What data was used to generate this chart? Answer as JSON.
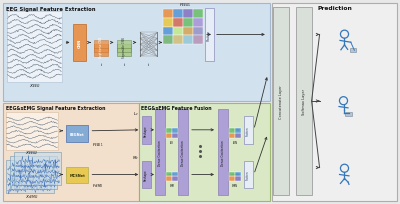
{
  "fig_width": 4.0,
  "fig_height": 2.05,
  "dpi": 100,
  "bg_outer": "#e8e8e8",
  "top_section_color": "#cde0f0",
  "bottom_left_color": "#f5dfc8",
  "bottom_right_color": "#d8e8c0",
  "prediction_bg": "#e8e8e8",
  "prediction_inner": "#f0f0f0",
  "orange_block": "#E8924A",
  "purple_block": "#8878C3",
  "blue_block": "#7BA7D4",
  "yellow_block": "#E8C84A",
  "light_purple": "#A898D8",
  "flatten_color": "#e8eef8",
  "concat_layer_color": "#d8e0d8",
  "softmax_color": "#d8e0d8",
  "arrow_color": "#444444",
  "text_color": "#111111",
  "grid_colors_top": [
    "#E8924A",
    "#5B9BD5",
    "#8878C3",
    "#70C070",
    "#E8C84A",
    "#D47060",
    "#70C070",
    "#A898D8",
    "#5B9BD5",
    "#C0E890",
    "#D4A860",
    "#9898C8",
    "#78B878",
    "#D0C080",
    "#98C8D8",
    "#B898B8"
  ],
  "cube_colors_ev": [
    "#E8924A",
    "#8878C3",
    "#70C070",
    "#5B9BD5"
  ],
  "cube_colors_mv": [
    "#E8924A",
    "#8878C3",
    "#70C070",
    "#5B9BD5"
  ],
  "eeg_title": "EEG Signal Feature Extraction",
  "eemg_title": "EEG&sEMG Signal Feature Extraction",
  "fusion_title": "EEG&sEMG Feature Fusion",
  "pred_title": "Prediction",
  "label_fs": 3.2,
  "title_fs": 3.8,
  "small_fs": 2.5,
  "tiny_fs": 2.0
}
